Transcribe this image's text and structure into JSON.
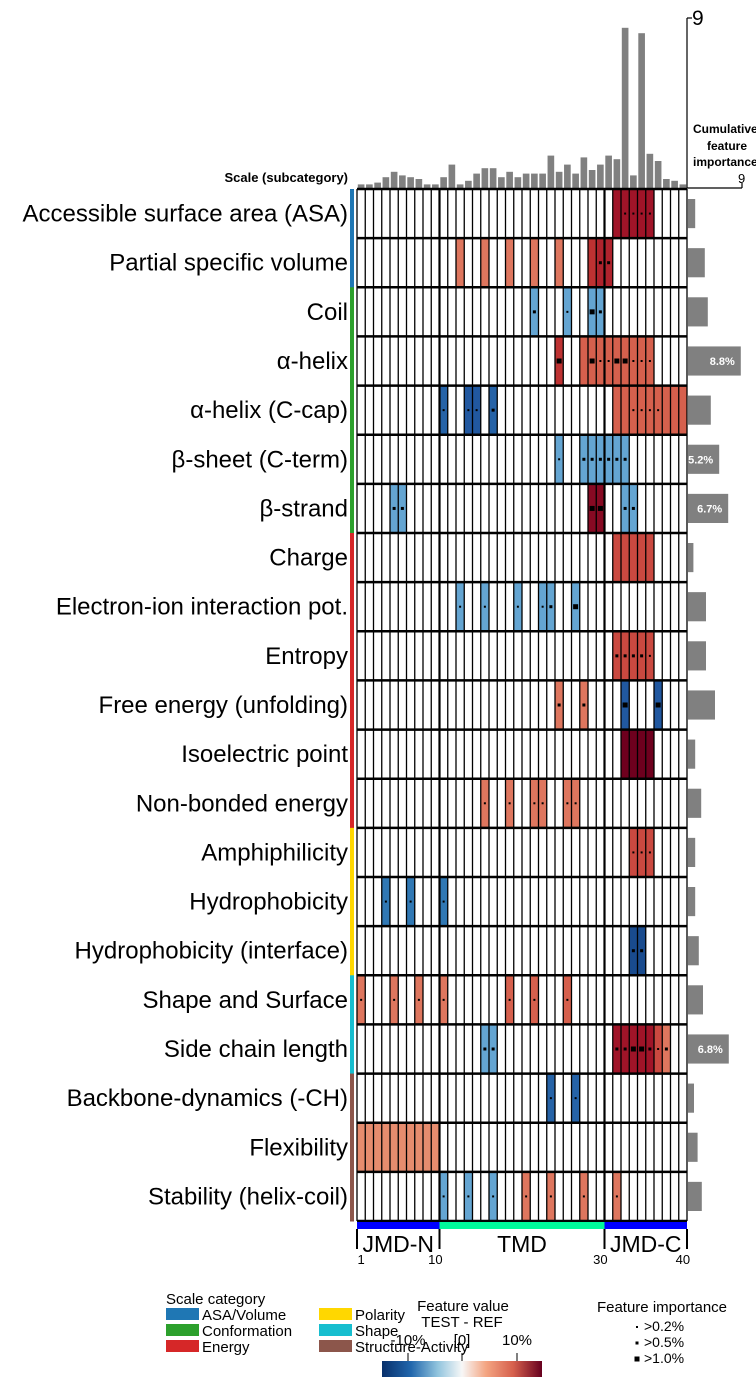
{
  "chart_data": {
    "type": "heatmap",
    "ylabel": "Scale (subcategory)",
    "rows": [
      {
        "label": "Accessible surface area (ASA)",
        "category": "ASA/Volume",
        "importance": 1.2
      },
      {
        "label": "Partial specific volume",
        "category": "ASA/Volume",
        "importance": 2.8
      },
      {
        "label": "Coil",
        "category": "Conformation",
        "importance": 3.3
      },
      {
        "label": "α-helix",
        "category": "Conformation",
        "importance": 8.8,
        "importance_label": "8.8%"
      },
      {
        "label": "α-helix (C-cap)",
        "category": "Conformation",
        "importance": 3.8
      },
      {
        "label": "β-sheet (C-term)",
        "category": "Conformation",
        "importance": 5.2,
        "importance_label": "5.2%"
      },
      {
        "label": "β-strand",
        "category": "Conformation",
        "importance": 6.7,
        "importance_label": "6.7%"
      },
      {
        "label": "Charge",
        "category": "Energy",
        "importance": 0.9
      },
      {
        "label": "Electron-ion interaction pot.",
        "category": "Energy",
        "importance": 3.0
      },
      {
        "label": "Entropy",
        "category": "Energy",
        "importance": 3.0
      },
      {
        "label": "Free energy (unfolding)",
        "category": "Energy",
        "importance": 4.5
      },
      {
        "label": "Isoelectric point",
        "category": "Energy",
        "importance": 1.2
      },
      {
        "label": "Non-bonded energy",
        "category": "Energy",
        "importance": 2.2
      },
      {
        "label": "Amphiphilicity",
        "category": "Polarity",
        "importance": 1.2
      },
      {
        "label": "Hydrophobicity",
        "category": "Polarity",
        "importance": 1.2
      },
      {
        "label": "Hydrophobicity (interface)",
        "category": "Polarity",
        "importance": 1.8
      },
      {
        "label": "Shape and Surface",
        "category": "Shape",
        "importance": 2.5
      },
      {
        "label": "Side chain length",
        "category": "Shape",
        "importance": 6.8,
        "importance_label": "6.8%"
      },
      {
        "label": "Backbone-dynamics (-CH)",
        "category": "Structure-Activity",
        "importance": 1.0
      },
      {
        "label": "Flexibility",
        "category": "Structure-Activity",
        "importance": 1.6
      },
      {
        "label": "Stability (helix-coil)",
        "category": "Structure-Activity",
        "importance": 2.3
      }
    ],
    "positions": 40,
    "cells": [
      {
        "row": 0,
        "from": 31,
        "to": 35,
        "value": 12,
        "marks": [
          0,
          1,
          1,
          1,
          1
        ]
      },
      {
        "row": 1,
        "from": 12,
        "to": 12,
        "value": 7
      },
      {
        "row": 1,
        "from": 15,
        "to": 15,
        "value": 7
      },
      {
        "row": 1,
        "from": 18,
        "to": 18,
        "value": 7
      },
      {
        "row": 1,
        "from": 21,
        "to": 21,
        "value": 7
      },
      {
        "row": 1,
        "from": 24,
        "to": 24,
        "value": 7
      },
      {
        "row": 1,
        "from": 28,
        "to": 28,
        "value": 10
      },
      {
        "row": 1,
        "from": 29,
        "to": 30,
        "value": 11,
        "marks": [
          2,
          2
        ]
      },
      {
        "row": 2,
        "from": 21,
        "to": 21,
        "value": -6,
        "marks": [
          2
        ]
      },
      {
        "row": 2,
        "from": 25,
        "to": 25,
        "value": -6,
        "marks": [
          1
        ]
      },
      {
        "row": 2,
        "from": 28,
        "to": 29,
        "value": -6,
        "marks": [
          3,
          2
        ]
      },
      {
        "row": 3,
        "from": 24,
        "to": 24,
        "value": 10,
        "marks": [
          3
        ]
      },
      {
        "row": 3,
        "from": 27,
        "to": 35,
        "value": 8,
        "marks": [
          0,
          3,
          1,
          1,
          3,
          3,
          1,
          1,
          1
        ]
      },
      {
        "row": 4,
        "from": 10,
        "to": 10,
        "value": -10,
        "marks": [
          1
        ]
      },
      {
        "row": 4,
        "from": 13,
        "to": 14,
        "value": -11,
        "marks": [
          1,
          1
        ]
      },
      {
        "row": 4,
        "from": 16,
        "to": 16,
        "value": -10,
        "marks": [
          2
        ]
      },
      {
        "row": 4,
        "from": 31,
        "to": 39,
        "value": 8,
        "marks": [
          0,
          0,
          1,
          1,
          1,
          1,
          0,
          0,
          0
        ]
      },
      {
        "row": 5,
        "from": 24,
        "to": 24,
        "value": -6,
        "marks": [
          1
        ]
      },
      {
        "row": 5,
        "from": 27,
        "to": 32,
        "value": -6,
        "marks": [
          2,
          2,
          2,
          2,
          2,
          2
        ]
      },
      {
        "row": 6,
        "from": 4,
        "to": 5,
        "value": -6,
        "marks": [
          2,
          2
        ]
      },
      {
        "row": 6,
        "from": 28,
        "to": 29,
        "value": 13,
        "marks": [
          3,
          3
        ]
      },
      {
        "row": 6,
        "from": 32,
        "to": 33,
        "value": -6,
        "marks": [
          2,
          2
        ]
      },
      {
        "row": 7,
        "from": 31,
        "to": 35,
        "value": 9
      },
      {
        "row": 8,
        "from": 12,
        "to": 12,
        "value": -6,
        "marks": [
          1
        ]
      },
      {
        "row": 8,
        "from": 15,
        "to": 15,
        "value": -6,
        "marks": [
          1
        ]
      },
      {
        "row": 8,
        "from": 19,
        "to": 19,
        "value": -6,
        "marks": [
          1
        ]
      },
      {
        "row": 8,
        "from": 22,
        "to": 23,
        "value": -6,
        "marks": [
          1,
          2
        ]
      },
      {
        "row": 8,
        "from": 26,
        "to": 26,
        "value": -6,
        "marks": [
          3
        ]
      },
      {
        "row": 9,
        "from": 31,
        "to": 35,
        "value": 9,
        "marks": [
          2,
          2,
          2,
          2,
          1
        ]
      },
      {
        "row": 10,
        "from": 24,
        "to": 24,
        "value": 7,
        "marks": [
          2
        ]
      },
      {
        "row": 10,
        "from": 27,
        "to": 27,
        "value": 7,
        "marks": [
          2
        ]
      },
      {
        "row": 10,
        "from": 32,
        "to": 32,
        "value": -11,
        "marks": [
          3
        ]
      },
      {
        "row": 10,
        "from": 36,
        "to": 36,
        "value": -11,
        "marks": [
          3
        ]
      },
      {
        "row": 11,
        "from": 32,
        "to": 35,
        "value": 14
      },
      {
        "row": 12,
        "from": 15,
        "to": 15,
        "value": 7,
        "marks": [
          1
        ]
      },
      {
        "row": 12,
        "from": 18,
        "to": 18,
        "value": 7,
        "marks": [
          1
        ]
      },
      {
        "row": 12,
        "from": 21,
        "to": 22,
        "value": 7,
        "marks": [
          1,
          1
        ]
      },
      {
        "row": 12,
        "from": 25,
        "to": 26,
        "value": 7,
        "marks": [
          1,
          1
        ]
      },
      {
        "row": 13,
        "from": 33,
        "to": 35,
        "value": 9,
        "marks": [
          1,
          1,
          1
        ]
      },
      {
        "row": 14,
        "from": 3,
        "to": 3,
        "value": -8,
        "marks": [
          1
        ]
      },
      {
        "row": 14,
        "from": 6,
        "to": 6,
        "value": -8,
        "marks": [
          1
        ]
      },
      {
        "row": 14,
        "from": 10,
        "to": 10,
        "value": -8,
        "marks": [
          1
        ]
      },
      {
        "row": 15,
        "from": 33,
        "to": 34,
        "value": -12,
        "marks": [
          2,
          2
        ]
      },
      {
        "row": 16,
        "from": 0,
        "to": 0,
        "value": 7,
        "marks": [
          1
        ]
      },
      {
        "row": 16,
        "from": 4,
        "to": 4,
        "value": 7,
        "marks": [
          1
        ]
      },
      {
        "row": 16,
        "from": 7,
        "to": 7,
        "value": 7,
        "marks": [
          1
        ]
      },
      {
        "row": 16,
        "from": 10,
        "to": 10,
        "value": 7,
        "marks": [
          1
        ]
      },
      {
        "row": 16,
        "from": 18,
        "to": 18,
        "value": 8,
        "marks": [
          1
        ]
      },
      {
        "row": 16,
        "from": 21,
        "to": 21,
        "value": 8,
        "marks": [
          1
        ]
      },
      {
        "row": 16,
        "from": 25,
        "to": 25,
        "value": 8,
        "marks": [
          1
        ]
      },
      {
        "row": 17,
        "from": 15,
        "to": 16,
        "value": -6,
        "marks": [
          2,
          2
        ]
      },
      {
        "row": 17,
        "from": 31,
        "to": 35,
        "value": 12,
        "marks": [
          2,
          2,
          3,
          3,
          2
        ]
      },
      {
        "row": 17,
        "from": 36,
        "to": 36,
        "value": 9,
        "marks": [
          1
        ]
      },
      {
        "row": 17,
        "from": 37,
        "to": 37,
        "value": 7,
        "marks": [
          2
        ]
      },
      {
        "row": 18,
        "from": 23,
        "to": 23,
        "value": -10,
        "marks": [
          1
        ]
      },
      {
        "row": 18,
        "from": 26,
        "to": 26,
        "value": -10,
        "marks": [
          1
        ]
      },
      {
        "row": 19,
        "from": 0,
        "to": 9,
        "value": 6
      },
      {
        "row": 20,
        "from": 10,
        "to": 10,
        "value": -6,
        "marks": [
          1
        ]
      },
      {
        "row": 20,
        "from": 13,
        "to": 13,
        "value": -6,
        "marks": [
          1
        ]
      },
      {
        "row": 20,
        "from": 16,
        "to": 16,
        "value": -6,
        "marks": [
          1
        ]
      },
      {
        "row": 20,
        "from": 20,
        "to": 20,
        "value": 7,
        "marks": [
          1
        ]
      },
      {
        "row": 20,
        "from": 23,
        "to": 23,
        "value": 7,
        "marks": [
          1
        ]
      },
      {
        "row": 20,
        "from": 27,
        "to": 27,
        "value": 7,
        "marks": [
          1
        ]
      },
      {
        "row": 20,
        "from": 31,
        "to": 31,
        "value": 7,
        "marks": [
          1
        ]
      }
    ],
    "cumulative_importance": [
      0.2,
      0.2,
      0.3,
      0.6,
      0.9,
      0.7,
      0.6,
      0.5,
      0.2,
      0.2,
      0.6,
      1.3,
      0.2,
      0.4,
      0.8,
      1.1,
      1.1,
      0.6,
      0.9,
      0.6,
      0.8,
      0.8,
      0.8,
      1.8,
      0.9,
      1.3,
      0.8,
      1.7,
      1.0,
      1.3,
      1.8,
      1.6,
      8.9,
      0.7,
      8.6,
      1.9,
      1.5,
      0.5,
      0.4,
      0.2
    ],
    "cumulative_axis_max": "9",
    "cumulative_title": [
      "Cumulative",
      "feature",
      "importance"
    ],
    "cumulative_tick": "9",
    "regions": [
      {
        "label": "JMD-N",
        "from": 1,
        "to": 10
      },
      {
        "label": "TMD",
        "from": 11,
        "to": 30
      },
      {
        "label": "JMD-C",
        "from": 31,
        "to": 40
      }
    ],
    "xticks": [
      "1",
      "10",
      "30",
      "40"
    ],
    "region_colors": {
      "JMD": "#0000ff",
      "TMD": "#00fa9a"
    },
    "scale_categories": [
      {
        "name": "ASA/Volume",
        "color": "#1f77b4"
      },
      {
        "name": "Conformation",
        "color": "#2ca02c"
      },
      {
        "name": "Energy",
        "color": "#d62728"
      },
      {
        "name": "Polarity",
        "color": "#ffd700"
      },
      {
        "name": "Shape",
        "color": "#17becf"
      },
      {
        "name": "Structure-Activity",
        "color": "#8c564b"
      }
    ],
    "legend": {
      "category_title": "Scale category",
      "value_title": "Feature value",
      "value_subtitle": "TEST - REF",
      "value_ticks": [
        "-10%",
        "[0]",
        "10%"
      ],
      "importance_title": "Feature importance",
      "importance_items": [
        ">0.2%",
        ">0.5%",
        ">1.0%"
      ]
    }
  }
}
